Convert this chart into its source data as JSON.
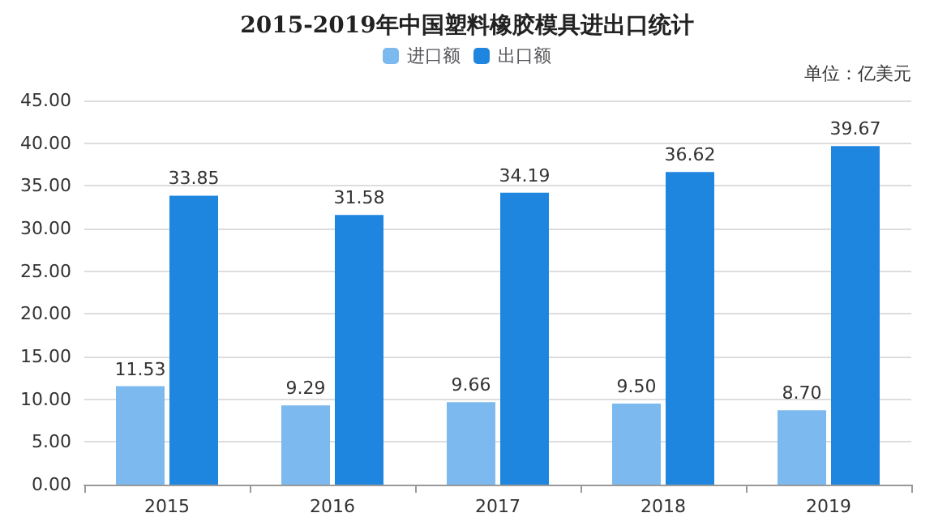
{
  "chart_data": {
    "type": "bar",
    "title": "2015-2019年中国塑料橡胶模具进出口统计",
    "categories": [
      "2015",
      "2016",
      "2017",
      "2018",
      "2019"
    ],
    "series": [
      {
        "name": "进口额",
        "color": "#7cb9ef",
        "values": [
          11.53,
          9.29,
          9.66,
          9.5,
          8.7
        ],
        "value_labels": [
          "11.53",
          "9.29",
          "9.66",
          "9.50",
          "8.70"
        ]
      },
      {
        "name": "出口额",
        "color": "#1f86e0",
        "values": [
          33.85,
          31.58,
          34.19,
          36.62,
          39.67
        ],
        "value_labels": [
          "33.85",
          "31.58",
          "34.19",
          "36.62",
          "39.67"
        ]
      }
    ],
    "ylim": [
      0,
      45
    ],
    "yticks": [
      {
        "value": 0,
        "label": "0.00"
      },
      {
        "value": 5,
        "label": "5.00"
      },
      {
        "value": 10,
        "label": "10.00"
      },
      {
        "value": 15,
        "label": "15.00"
      },
      {
        "value": 20,
        "label": "20.00"
      },
      {
        "value": 25,
        "label": "25.00"
      },
      {
        "value": 30,
        "label": "30.00"
      },
      {
        "value": 35,
        "label": "35.00"
      },
      {
        "value": 40,
        "label": "40.00"
      },
      {
        "value": 45,
        "label": "45.00"
      }
    ],
    "grid": "y",
    "legend": "top",
    "annotations": [
      "单位：亿美元"
    ]
  }
}
